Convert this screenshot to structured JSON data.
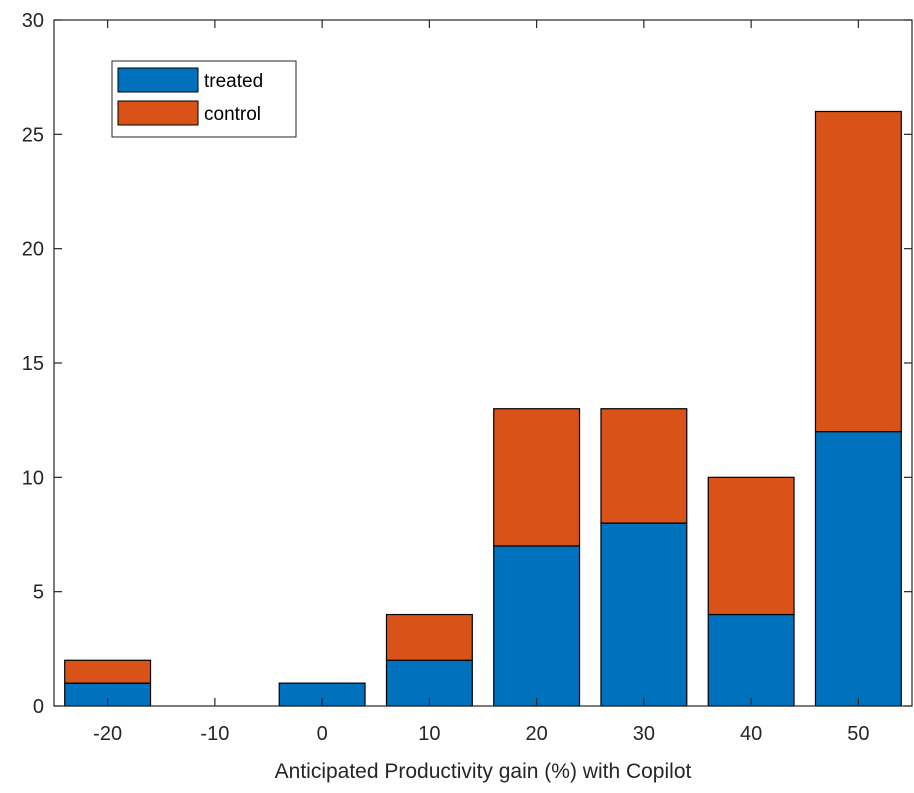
{
  "chart_data": {
    "type": "bar",
    "stacked": true,
    "title": "",
    "xlabel": "Anticipated Productivity gain (%) with Copilot",
    "ylabel": "",
    "categories": [
      "-20",
      "-10",
      "0",
      "10",
      "20",
      "30",
      "40",
      "50"
    ],
    "series": [
      {
        "name": "treated",
        "color": "#0072BD",
        "values": [
          1,
          0,
          1,
          2,
          7,
          8,
          4,
          12
        ]
      },
      {
        "name": "control",
        "color": "#D95319",
        "values": [
          1,
          0,
          0,
          2,
          6,
          5,
          6,
          14
        ]
      }
    ],
    "ylim": [
      0,
      30
    ],
    "yticks": [
      "0",
      "5",
      "10",
      "15",
      "20",
      "25",
      "30"
    ],
    "grid": false,
    "legend_position": "top-left"
  }
}
